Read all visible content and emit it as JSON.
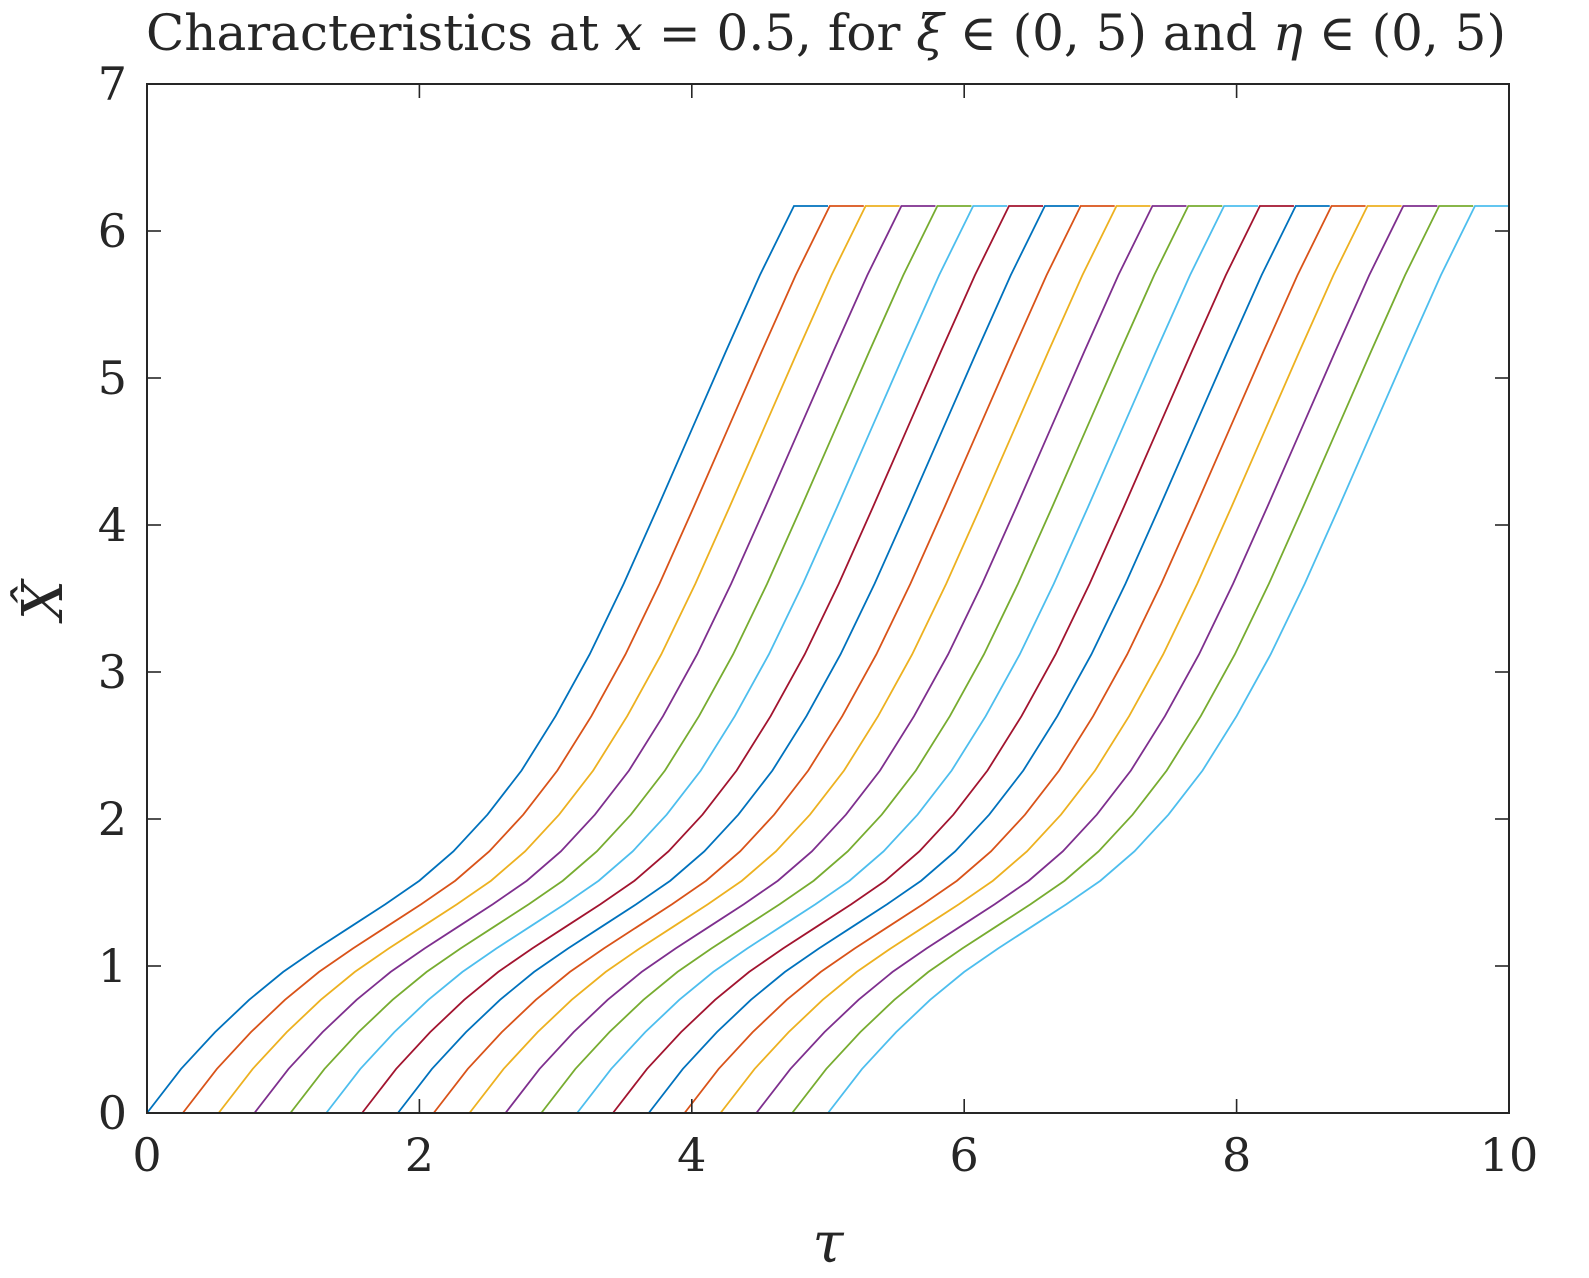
{
  "chart_data": {
    "type": "line",
    "title_parts": [
      "Characteristics at ",
      "x",
      " = 0.5, for ",
      "ξ",
      " ∈ (0, 5) and ",
      "η",
      " ∈ (0, 5)"
    ],
    "xlabel": "τ",
    "ylabel": "X̂",
    "xlim": [
      0,
      10
    ],
    "ylim": [
      0,
      7
    ],
    "xticks": [
      0,
      2,
      4,
      6,
      8,
      10
    ],
    "yticks": [
      0,
      1,
      2,
      3,
      4,
      5,
      6,
      7
    ],
    "x_tick_labels": [
      "0",
      "2",
      "4",
      "6",
      "8",
      "10"
    ],
    "y_tick_labels": [
      "0",
      "1",
      "2",
      "3",
      "4",
      "5",
      "6",
      "7"
    ],
    "grid": false,
    "legend": "none",
    "colors": [
      "#0072BD",
      "#D95319",
      "#EDB120",
      "#7E2F8E",
      "#77AC30",
      "#4DBEEE",
      "#A2142F"
    ],
    "curve_shape": {
      "x": [
        0.0,
        0.25,
        0.5,
        0.75,
        1.0,
        1.25,
        1.5,
        1.75,
        2.0,
        2.25,
        2.5,
        2.75,
        3.0,
        3.25,
        3.5,
        3.75,
        4.0,
        4.25,
        4.5,
        4.75,
        5.0
      ],
      "y": [
        0.0,
        0.3,
        0.55,
        0.77,
        0.96,
        1.12,
        1.27,
        1.42,
        1.58,
        1.78,
        2.03,
        2.33,
        2.7,
        3.12,
        3.6,
        4.12,
        4.65,
        5.18,
        5.7,
        6.17,
        6.17
      ]
    },
    "series_start_tau": [
      0.0,
      0.263,
      0.526,
      0.789,
      1.053,
      1.316,
      1.579,
      1.842,
      2.105,
      2.368,
      2.632,
      2.895,
      3.158,
      3.421,
      3.684,
      3.947,
      4.211,
      4.474,
      4.737,
      5.0
    ],
    "max_value": 6.17
  }
}
